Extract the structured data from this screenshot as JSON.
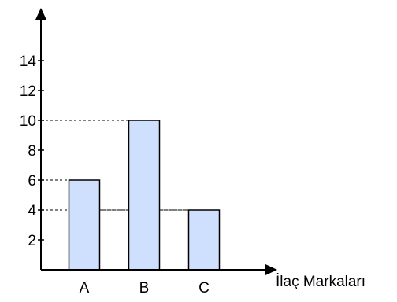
{
  "chart_data": {
    "type": "bar",
    "categories": [
      "A",
      "B",
      "C"
    ],
    "values": [
      6,
      10,
      4
    ],
    "xlabel": "İlaç Markaları",
    "ylabel": "",
    "title": "",
    "ylim": [
      0,
      15
    ],
    "y_ticks": [
      2,
      4,
      6,
      8,
      10,
      12,
      14
    ],
    "y_tick_labels": [
      "2",
      "4",
      "6",
      "8",
      "10",
      "12",
      "14"
    ],
    "grid": false,
    "reference_lines": "dashed guide lines from the y-axis to the top of each bar",
    "colors": {
      "bar_fill": "#cfe0ff",
      "bar_stroke": "#000000",
      "axis": "#000000"
    }
  }
}
